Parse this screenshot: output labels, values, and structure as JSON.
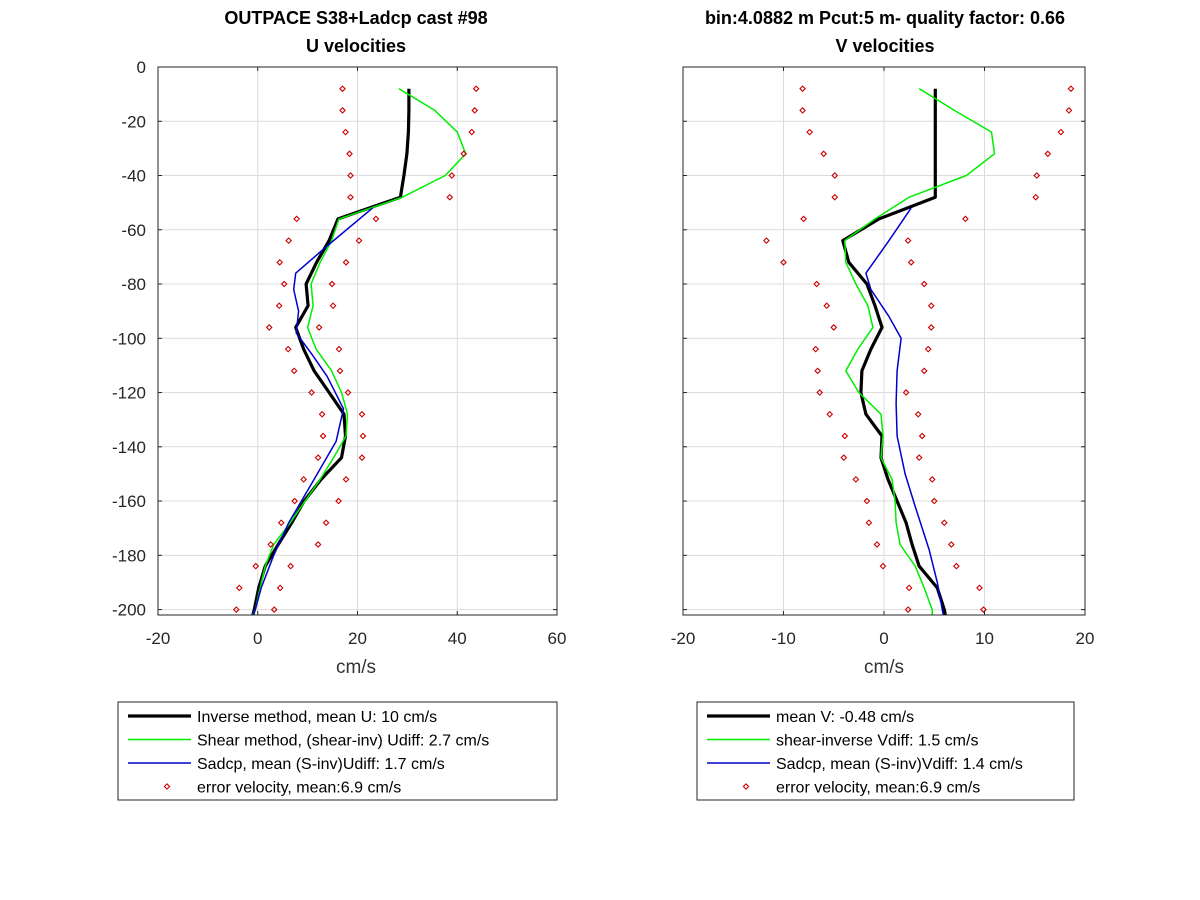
{
  "figure": {
    "left_title": [
      "OUTPACE S38+Ladcp cast #98",
      "U velocities"
    ],
    "right_title": [
      "bin:4.0882 m  Pcut:5 m- quality factor:  0.66",
      "V velocities"
    ]
  },
  "chart_data": [
    {
      "type": "line",
      "xlabel": "cm/s",
      "ylabel": "",
      "xlim": [
        -20,
        60
      ],
      "ylim": [
        -202,
        0
      ],
      "xticks": [
        -20,
        0,
        20,
        40,
        60
      ],
      "yticks": [
        0,
        -20,
        -40,
        -60,
        -80,
        -100,
        -120,
        -140,
        -160,
        -180,
        -200
      ],
      "grid": true,
      "legend_position": "below",
      "series": [
        {
          "name": "Inverse method, mean U:  10 cm/s",
          "color": "#000000",
          "style": "line-thick",
          "points": [
            [
              30.3,
              -8
            ],
            [
              30.3,
              -16
            ],
            [
              30.2,
              -24
            ],
            [
              29.9,
              -32
            ],
            [
              29.3,
              -40
            ],
            [
              28.6,
              -48
            ],
            [
              16.1,
              -56
            ],
            [
              14.3,
              -64
            ],
            [
              11.8,
              -72
            ],
            [
              9.7,
              -80
            ],
            [
              10.1,
              -88
            ],
            [
              7.6,
              -96
            ],
            [
              9.2,
              -104
            ],
            [
              11.3,
              -112
            ],
            [
              14.3,
              -120
            ],
            [
              17.3,
              -128
            ],
            [
              17.6,
              -136
            ],
            [
              16.8,
              -144
            ],
            [
              12.7,
              -152
            ],
            [
              9.3,
              -160
            ],
            [
              6.8,
              -168
            ],
            [
              4.1,
              -176
            ],
            [
              1.5,
              -184
            ],
            [
              0.2,
              -192
            ],
            [
              -0.7,
              -200
            ],
            [
              -1.0,
              -202
            ]
          ]
        },
        {
          "name": "Shear method, (shear-inv)  Udiff:  2.7 cm/s",
          "color": "#00ee00",
          "style": "line",
          "points": [
            [
              28.3,
              -8
            ],
            [
              35.5,
              -16
            ],
            [
              40.0,
              -24
            ],
            [
              41.7,
              -32
            ],
            [
              37.6,
              -40
            ],
            [
              29.0,
              -48
            ],
            [
              16.3,
              -56
            ],
            [
              14.8,
              -64
            ],
            [
              12.5,
              -72
            ],
            [
              10.7,
              -80
            ],
            [
              11.1,
              -88
            ],
            [
              10.0,
              -96
            ],
            [
              11.7,
              -104
            ],
            [
              14.8,
              -112
            ],
            [
              16.8,
              -120
            ],
            [
              18.0,
              -128
            ],
            [
              17.7,
              -136
            ],
            [
              15.2,
              -144
            ],
            [
              12.5,
              -152
            ],
            [
              9.5,
              -160
            ],
            [
              6.5,
              -168
            ],
            [
              3.2,
              -176
            ],
            [
              1.5,
              -184
            ],
            [
              0.5,
              -192
            ],
            [
              -0.5,
              -200
            ],
            [
              -1.0,
              -202
            ]
          ]
        },
        {
          "name": "Sadcp, mean (S-inv)Udiff: 1.7 cm/s",
          "color": "#0000cc",
          "style": "line",
          "points": [
            [
              23.0,
              -52
            ],
            [
              13.9,
              -66
            ],
            [
              7.6,
              -76
            ],
            [
              7.2,
              -82
            ],
            [
              8.2,
              -90
            ],
            [
              7.7,
              -98
            ],
            [
              10.9,
              -106
            ],
            [
              13.9,
              -114
            ],
            [
              17.2,
              -126
            ],
            [
              15.7,
              -138
            ],
            [
              11.3,
              -152
            ],
            [
              6.2,
              -168
            ],
            [
              3.2,
              -180
            ],
            [
              0.7,
              -192
            ],
            [
              -0.5,
              -200
            ],
            [
              -0.9,
              -202
            ]
          ]
        },
        {
          "name": "error velocity, mean:6.9 cm/s",
          "color": "#cc0000",
          "style": "markers",
          "points": [
            [
              17.0,
              -8
            ],
            [
              43.8,
              -8
            ],
            [
              17.0,
              -16
            ],
            [
              43.5,
              -16
            ],
            [
              17.6,
              -24
            ],
            [
              42.9,
              -24
            ],
            [
              18.4,
              -32
            ],
            [
              41.3,
              -32
            ],
            [
              18.6,
              -40
            ],
            [
              38.9,
              -40
            ],
            [
              18.6,
              -48
            ],
            [
              38.5,
              -48
            ],
            [
              7.8,
              -56
            ],
            [
              23.7,
              -56
            ],
            [
              6.2,
              -64
            ],
            [
              20.3,
              -64
            ],
            [
              4.4,
              -72
            ],
            [
              17.7,
              -72
            ],
            [
              5.3,
              -80
            ],
            [
              14.9,
              -80
            ],
            [
              4.3,
              -88
            ],
            [
              15.1,
              -88
            ],
            [
              2.3,
              -96
            ],
            [
              12.3,
              -96
            ],
            [
              6.1,
              -104
            ],
            [
              16.3,
              -104
            ],
            [
              7.3,
              -112
            ],
            [
              16.5,
              -112
            ],
            [
              10.8,
              -120
            ],
            [
              18.1,
              -120
            ],
            [
              12.9,
              -128
            ],
            [
              20.9,
              -128
            ],
            [
              13.1,
              -136
            ],
            [
              21.1,
              -136
            ],
            [
              12.1,
              -144
            ],
            [
              20.9,
              -144
            ],
            [
              9.2,
              -152
            ],
            [
              17.7,
              -152
            ],
            [
              7.4,
              -160
            ],
            [
              16.2,
              -160
            ],
            [
              4.7,
              -168
            ],
            [
              13.7,
              -168
            ],
            [
              2.6,
              -176
            ],
            [
              12.1,
              -176
            ],
            [
              -0.4,
              -184
            ],
            [
              6.6,
              -184
            ],
            [
              -3.7,
              -192
            ],
            [
              4.5,
              -192
            ],
            [
              -4.3,
              -200
            ],
            [
              3.3,
              -200
            ]
          ]
        }
      ]
    },
    {
      "type": "line",
      "xlabel": "cm/s",
      "ylabel": "",
      "xlim": [
        -20,
        20
      ],
      "ylim": [
        -202,
        0
      ],
      "xticks": [
        -20,
        -10,
        0,
        10,
        20
      ],
      "yticks": [
        0,
        -20,
        -40,
        -60,
        -80,
        -100,
        -120,
        -140,
        -160,
        -180,
        -200
      ],
      "grid": true,
      "legend_position": "below",
      "series": [
        {
          "name": "mean V:  -0.48 cm/s",
          "color": "#000000",
          "style": "line-thick",
          "points": [
            [
              5.1,
              -8
            ],
            [
              5.1,
              -16
            ],
            [
              5.1,
              -24
            ],
            [
              5.1,
              -32
            ],
            [
              5.1,
              -40
            ],
            [
              5.1,
              -48
            ],
            [
              -0.5,
              -56
            ],
            [
              -4.1,
              -64
            ],
            [
              -3.5,
              -72
            ],
            [
              -1.7,
              -80
            ],
            [
              -0.9,
              -88
            ],
            [
              -0.2,
              -96
            ],
            [
              -1.3,
              -104
            ],
            [
              -2.2,
              -112
            ],
            [
              -2.3,
              -120
            ],
            [
              -1.8,
              -128
            ],
            [
              -0.2,
              -136
            ],
            [
              -0.3,
              -144
            ],
            [
              0.4,
              -152
            ],
            [
              1.3,
              -160
            ],
            [
              2.2,
              -168
            ],
            [
              2.8,
              -176
            ],
            [
              3.5,
              -184
            ],
            [
              5.3,
              -192
            ],
            [
              6.0,
              -200
            ],
            [
              6.1,
              -202
            ]
          ]
        },
        {
          "name": "shear-inverse Vdiff:  1.5 cm/s",
          "color": "#00ee00",
          "style": "line",
          "points": [
            [
              3.5,
              -8
            ],
            [
              7.0,
              -16
            ],
            [
              10.7,
              -24
            ],
            [
              11.0,
              -32
            ],
            [
              8.2,
              -40
            ],
            [
              2.5,
              -48
            ],
            [
              -0.9,
              -56
            ],
            [
              -3.9,
              -64
            ],
            [
              -3.8,
              -72
            ],
            [
              -2.8,
              -80
            ],
            [
              -1.6,
              -88
            ],
            [
              -1.1,
              -96
            ],
            [
              -2.6,
              -104
            ],
            [
              -3.8,
              -112
            ],
            [
              -2.5,
              -120
            ],
            [
              -0.3,
              -128
            ],
            [
              -0.1,
              -136
            ],
            [
              -0.3,
              -144
            ],
            [
              0.8,
              -152
            ],
            [
              1.1,
              -160
            ],
            [
              1.2,
              -168
            ],
            [
              1.6,
              -176
            ],
            [
              3.1,
              -184
            ],
            [
              4.0,
              -192
            ],
            [
              4.8,
              -200
            ],
            [
              4.8,
              -202
            ]
          ]
        },
        {
          "name": "Sadcp, mean (S-inv)Vdiff: 1.4 cm/s",
          "color": "#0000cc",
          "style": "line",
          "points": [
            [
              2.7,
              -52
            ],
            [
              0.5,
              -64
            ],
            [
              -1.8,
              -76
            ],
            [
              -1.3,
              -82
            ],
            [
              0.5,
              -92
            ],
            [
              1.7,
              -100
            ],
            [
              1.3,
              -112
            ],
            [
              1.2,
              -124
            ],
            [
              1.3,
              -136
            ],
            [
              2.1,
              -150
            ],
            [
              3.1,
              -162
            ],
            [
              4.5,
              -178
            ],
            [
              5.3,
              -190
            ],
            [
              5.8,
              -200
            ],
            [
              5.9,
              -202
            ]
          ]
        },
        {
          "name": "error velocity, mean:6.9 cm/s",
          "color": "#cc0000",
          "style": "markers",
          "points": [
            [
              -8.1,
              -8
            ],
            [
              18.6,
              -8
            ],
            [
              -8.1,
              -16
            ],
            [
              18.4,
              -16
            ],
            [
              -7.4,
              -24
            ],
            [
              17.6,
              -24
            ],
            [
              -6.0,
              -32
            ],
            [
              16.3,
              -32
            ],
            [
              -4.9,
              -40
            ],
            [
              15.2,
              -40
            ],
            [
              -4.9,
              -48
            ],
            [
              15.1,
              -48
            ],
            [
              -8.0,
              -56
            ],
            [
              8.1,
              -56
            ],
            [
              -11.7,
              -64
            ],
            [
              2.4,
              -64
            ],
            [
              -10.0,
              -72
            ],
            [
              2.7,
              -72
            ],
            [
              -6.7,
              -80
            ],
            [
              4.0,
              -80
            ],
            [
              -5.7,
              -88
            ],
            [
              4.7,
              -88
            ],
            [
              -5.0,
              -96
            ],
            [
              4.7,
              -96
            ],
            [
              -6.8,
              -104
            ],
            [
              4.4,
              -104
            ],
            [
              -6.6,
              -112
            ],
            [
              4.0,
              -112
            ],
            [
              -6.4,
              -120
            ],
            [
              2.2,
              -120
            ],
            [
              -5.4,
              -128
            ],
            [
              3.4,
              -128
            ],
            [
              -3.9,
              -136
            ],
            [
              3.8,
              -136
            ],
            [
              -4.0,
              -144
            ],
            [
              3.5,
              -144
            ],
            [
              -2.8,
              -152
            ],
            [
              4.8,
              -152
            ],
            [
              -1.7,
              -160
            ],
            [
              5.0,
              -160
            ],
            [
              -1.5,
              -168
            ],
            [
              6.0,
              -168
            ],
            [
              -0.7,
              -176
            ],
            [
              6.7,
              -176
            ],
            [
              -0.1,
              -184
            ],
            [
              7.2,
              -184
            ],
            [
              2.5,
              -192
            ],
            [
              9.5,
              -192
            ],
            [
              2.4,
              -200
            ],
            [
              9.9,
              -200
            ]
          ]
        }
      ]
    }
  ]
}
